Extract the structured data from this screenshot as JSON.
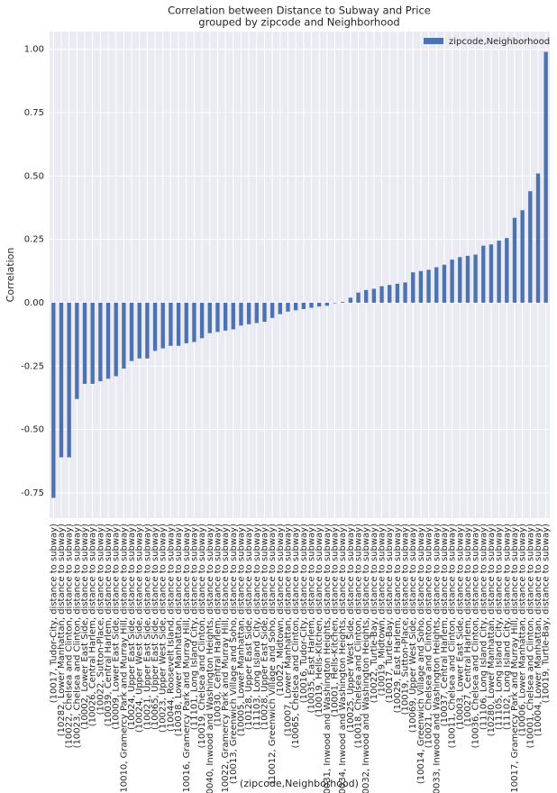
{
  "chart_data": {
    "type": "bar",
    "title": "Correlation between Distance to Subway and Price",
    "subtitle": "grouped by zipcode and Neighborhood",
    "x_label": "(zipcode,Neighborhood)",
    "y_label": "Correlation",
    "legend": "upper right",
    "grid": true,
    "categories": [
      "(10017, Tudor-City, distance to subway)",
      "(10282, Lower Manhattan, distance to subway)",
      "(10022, Chelsea and Clinton, distance to subway)",
      "(10023, Chelsea and Clinton, distance to subway)",
      "(10002, Lower East Side, distance to subway)",
      "(10026, Central Harlem, distance to subway)",
      "(10022, Sutton-Place, distance to subway)",
      "(10039, Central Harlem, distance to subway)",
      "(10009, Lower East Side, distance to subway)",
      "(10010, Gramercy Park and Murray Hill, distance to subway)",
      "(10024, Upper East Side, distance to subway)",
      "(10024, Upper West Side, distance to subway)",
      "(10021, Upper East Side, distance to subway)",
      "(10065, Upper East Side, distance to subway)",
      "(10023, Upper West Side, distance to subway)",
      "(10044, Roosevelt Island, distance to subway)",
      "(10038, Lower Manhattan, distance to subway)",
      "(10016, Gramercy Park and Murray Hill, distance to subway)",
      "(11101, Long Island City, distance to subway)",
      "(10019, Chelsea and Clinton, distance to subway)",
      "(10040, Inwood and Washington Heights, distance to subway)",
      "(10030, Central Harlem, distance to subway)",
      "(10022, Gramercy Park and Murray Hill, distance to subway)",
      "(10013, Greenwich Village and Soho, distance to subway)",
      "(10005, Lower Manhattan, distance to subway)",
      "(10128, Upper East Side, distance to subway)",
      "(11103, Long Island City, distance to subway)",
      "(10028, Upper East Side, distance to subway)",
      "(10012, Greenwich Village and Soho, distance to subway)",
      "(10022, Midtown, distance to subway)",
      "(10007, Lower Manhattan, distance to subway)",
      "(10065, Chelsea and Clinton, distance to subway)",
      "(10016, Tudor-City, distance to subway)",
      "(10035, East Harlem, distance to subway)",
      "(10019, Hells-Kitchen, distance to subway)",
      "(10031, Inwood and Washington Heights, distance to subway)",
      "(10001, Hells-Kitchen, distance to subway)",
      "(10034, Inwood and Washington Heights, distance to subway)",
      "(10025, Upper West Side, distance to subway)",
      "(10018, Chelsea and Clinton, distance to subway)",
      "(10032, Inwood and Washington Heights, distance to subway)",
      "(10022, Turtle-Bay, distance to subway)",
      "(10019, Midtown, distance to subway)",
      "(10017, Turtle-Bay, distance to subway)",
      "(10029, East Harlem, distance to subway)",
      "(10019, Sutton-Place, distance to subway)",
      "(10069, Upper West Side, distance to subway)",
      "(10014, Greenwich Village and Soho, distance to subway)",
      "(10021, Chelsea and Clinton, distance to subway)",
      "(10033, Inwood and Washington Heights, distance to subway)",
      "(10037, Central Harlem, distance to subway)",
      "(10011, Chelsea and Clinton, distance to subway)",
      "(10003, Lower East Side, distance to subway)",
      "(10027, Central Harlem, distance to subway)",
      "(10036, Chelsea and Clinton, distance to subway)",
      "(11106, Long Island City, distance to subway)",
      "(10280, Lower Manhattan, distance to subway)",
      "(11105, Long Island City, distance to subway)",
      "(11102, Long Island City, distance to subway)",
      "(10017, Gramercy Park and Murray Hill, distance to subway)",
      "(10006, Lower Manhattan, distance to subway)",
      "(10001, Chelsea and Clinton, distance to subway)",
      "(10004, Lower Manhattan, distance to subway)",
      "(10019, Turtle-Bay, distance to subway)"
    ],
    "series": [
      {
        "name": "zipcode,Neighborhood",
        "color": "#4c72b0",
        "values": [
          -0.77,
          -0.61,
          -0.61,
          -0.38,
          -0.32,
          -0.32,
          -0.31,
          -0.3,
          -0.29,
          -0.26,
          -0.23,
          -0.22,
          -0.22,
          -0.19,
          -0.18,
          -0.17,
          -0.17,
          -0.16,
          -0.155,
          -0.14,
          -0.12,
          -0.115,
          -0.11,
          -0.105,
          -0.09,
          -0.085,
          -0.08,
          -0.075,
          -0.06,
          -0.045,
          -0.035,
          -0.03,
          -0.025,
          -0.02,
          -0.015,
          -0.012,
          -0.002,
          0.003,
          0.02,
          0.04,
          0.05,
          0.055,
          0.065,
          0.07,
          0.075,
          0.08,
          0.12,
          0.125,
          0.13,
          0.14,
          0.15,
          0.17,
          0.18,
          0.185,
          0.19,
          0.225,
          0.23,
          0.245,
          0.255,
          0.335,
          0.365,
          0.44,
          0.51,
          0.99
        ]
      }
    ],
    "ylim": [
      -0.85,
      1.07
    ],
    "yticks": [
      -0.75,
      {
        "value": -0.5,
        "label": "-0.50"
      },
      -0.25,
      {
        "value": 0,
        "label": "0.00"
      },
      0.25,
      {
        "value": 0.5,
        "label": "0.50"
      },
      0.75,
      {
        "value": 1,
        "label": "1.00"
      }
    ]
  }
}
